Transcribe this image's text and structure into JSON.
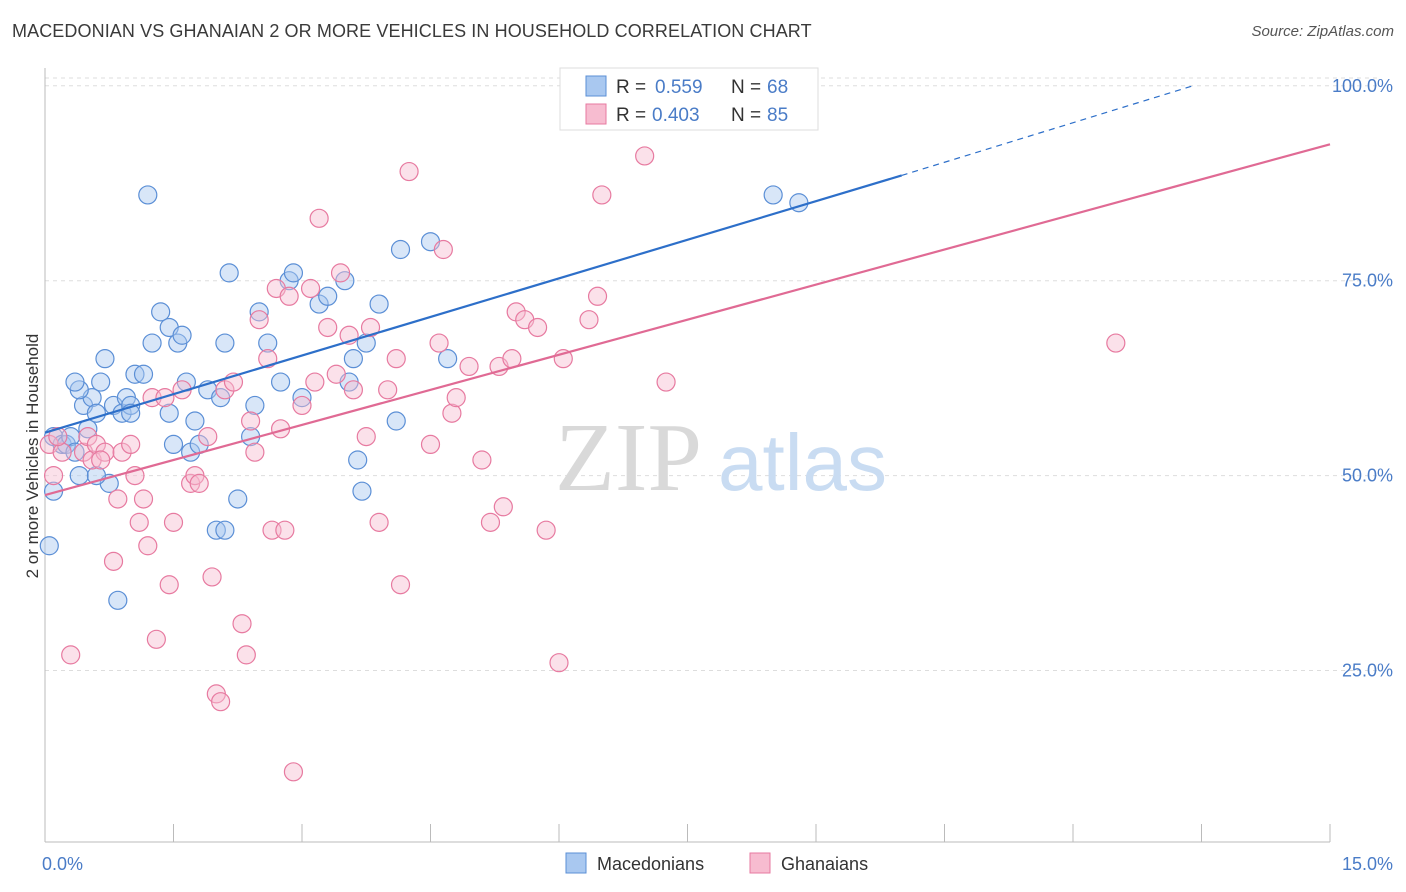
{
  "header": {
    "title": "MACEDONIAN VS GHANAIAN 2 OR MORE VEHICLES IN HOUSEHOLD CORRELATION CHART",
    "source": "Source: ZipAtlas.com"
  },
  "watermark": {
    "zip": "ZIP",
    "atlas": "atlas"
  },
  "legend": {
    "r_label": "R =",
    "n_label": "N =",
    "rows": [
      {
        "r": "0.559",
        "n": "68"
      },
      {
        "r": "0.403",
        "n": "85"
      }
    ]
  },
  "colors": {
    "blue_fill": "#a9c8f0",
    "blue_stroke": "#5b8fd6",
    "blue_line": "#2d6fc9",
    "pink_fill": "#f7bcd0",
    "pink_stroke": "#e77aa0",
    "pink_line": "#e06a94",
    "tick_text": "#4a7cc7",
    "grid": "#dddddd"
  },
  "chart_data": {
    "type": "scatter",
    "title": "MACEDONIAN VS GHANAIAN 2 OR MORE VEHICLES IN HOUSEHOLD CORRELATION CHART",
    "xlabel": "",
    "ylabel": "2 or more Vehicles in Household",
    "xlim": [
      0,
      15
    ],
    "ylim": [
      3,
      101
    ],
    "x_tick_labels": [
      "0.0%",
      "15.0%"
    ],
    "y_ticks": [
      25,
      50,
      75,
      100
    ],
    "y_tick_labels": [
      "25.0%",
      "50.0%",
      "75.0%",
      "100.0%"
    ],
    "grid": true,
    "legend_position": "top-center",
    "series": [
      {
        "name": "Macedonians",
        "color": "blue",
        "r": 0.559,
        "n": 68,
        "trend": {
          "x0": 0,
          "y0": 55.5,
          "x1": 10.0,
          "y1": 88.5,
          "dashed_to_x": 13.4,
          "dashed_to_y": 100
        },
        "points": [
          [
            0.1,
            55
          ],
          [
            0.1,
            48
          ],
          [
            0.05,
            41
          ],
          [
            0.2,
            54
          ],
          [
            0.25,
            54
          ],
          [
            0.3,
            55
          ],
          [
            0.35,
            53
          ],
          [
            0.4,
            50
          ],
          [
            0.45,
            59
          ],
          [
            0.5,
            56
          ],
          [
            0.55,
            60
          ],
          [
            0.4,
            61
          ],
          [
            0.35,
            62
          ],
          [
            0.6,
            58
          ],
          [
            0.65,
            62
          ],
          [
            0.7,
            65
          ],
          [
            0.75,
            49
          ],
          [
            0.8,
            59
          ],
          [
            0.9,
            58
          ],
          [
            0.95,
            60
          ],
          [
            1.0,
            59
          ],
          [
            1.05,
            63
          ],
          [
            1.15,
            63
          ],
          [
            1.25,
            67
          ],
          [
            1.35,
            71
          ],
          [
            1.45,
            69
          ],
          [
            1.55,
            67
          ],
          [
            1.6,
            68
          ],
          [
            1.65,
            62
          ],
          [
            1.5,
            54
          ],
          [
            1.45,
            58
          ],
          [
            1.7,
            53
          ],
          [
            1.75,
            57
          ],
          [
            1.8,
            54
          ],
          [
            1.9,
            61
          ],
          [
            2.0,
            43
          ],
          [
            2.05,
            60
          ],
          [
            2.15,
            76
          ],
          [
            2.1,
            67
          ],
          [
            2.4,
            55
          ],
          [
            2.45,
            59
          ],
          [
            2.5,
            71
          ],
          [
            2.6,
            67
          ],
          [
            2.75,
            62
          ],
          [
            2.85,
            75
          ],
          [
            2.9,
            76
          ],
          [
            3.0,
            60
          ],
          [
            3.2,
            72
          ],
          [
            3.3,
            73
          ],
          [
            3.5,
            75
          ],
          [
            3.55,
            62
          ],
          [
            3.6,
            65
          ],
          [
            3.65,
            52
          ],
          [
            3.7,
            48
          ],
          [
            3.75,
            67
          ],
          [
            3.9,
            72
          ],
          [
            4.1,
            57
          ],
          [
            4.15,
            79
          ],
          [
            4.5,
            80
          ],
          [
            4.7,
            65
          ],
          [
            1.2,
            86
          ],
          [
            2.1,
            43
          ],
          [
            2.25,
            47
          ],
          [
            0.85,
            34
          ],
          [
            0.6,
            50
          ],
          [
            1.0,
            58
          ],
          [
            8.5,
            86
          ],
          [
            8.8,
            85
          ]
        ]
      },
      {
        "name": "Ghanaians",
        "color": "pink",
        "r": 0.403,
        "n": 85,
        "trend": {
          "x0": 0,
          "y0": 47.5,
          "x1": 15.0,
          "y1": 92.5
        },
        "points": [
          [
            0.05,
            54
          ],
          [
            0.1,
            50
          ],
          [
            0.2,
            53
          ],
          [
            0.3,
            27
          ],
          [
            0.45,
            53
          ],
          [
            0.5,
            55
          ],
          [
            0.55,
            52
          ],
          [
            0.6,
            54
          ],
          [
            0.7,
            53
          ],
          [
            0.8,
            39
          ],
          [
            0.85,
            47
          ],
          [
            0.9,
            53
          ],
          [
            1.0,
            54
          ],
          [
            1.05,
            50
          ],
          [
            1.1,
            44
          ],
          [
            1.2,
            41
          ],
          [
            1.25,
            60
          ],
          [
            1.3,
            29
          ],
          [
            1.4,
            60
          ],
          [
            1.45,
            36
          ],
          [
            1.5,
            44
          ],
          [
            1.6,
            61
          ],
          [
            1.7,
            49
          ],
          [
            1.75,
            50
          ],
          [
            1.8,
            49
          ],
          [
            1.9,
            55
          ],
          [
            1.95,
            37
          ],
          [
            2.0,
            22
          ],
          [
            2.05,
            21
          ],
          [
            2.1,
            61
          ],
          [
            2.2,
            62
          ],
          [
            2.3,
            31
          ],
          [
            2.35,
            27
          ],
          [
            2.4,
            57
          ],
          [
            2.45,
            53
          ],
          [
            2.5,
            70
          ],
          [
            2.6,
            65
          ],
          [
            2.65,
            43
          ],
          [
            2.7,
            74
          ],
          [
            2.75,
            56
          ],
          [
            2.85,
            73
          ],
          [
            2.9,
            12
          ],
          [
            3.0,
            59
          ],
          [
            3.1,
            74
          ],
          [
            3.2,
            83
          ],
          [
            3.3,
            69
          ],
          [
            3.4,
            63
          ],
          [
            3.45,
            76
          ],
          [
            3.55,
            68
          ],
          [
            3.6,
            61
          ],
          [
            3.75,
            55
          ],
          [
            3.8,
            69
          ],
          [
            3.9,
            44
          ],
          [
            4.0,
            61
          ],
          [
            4.1,
            65
          ],
          [
            4.15,
            36
          ],
          [
            4.25,
            89
          ],
          [
            4.5,
            54
          ],
          [
            4.6,
            67
          ],
          [
            4.65,
            79
          ],
          [
            4.75,
            58
          ],
          [
            4.8,
            60
          ],
          [
            4.95,
            64
          ],
          [
            5.1,
            52
          ],
          [
            5.2,
            44
          ],
          [
            5.3,
            64
          ],
          [
            5.35,
            46
          ],
          [
            5.45,
            65
          ],
          [
            5.5,
            71
          ],
          [
            5.6,
            70
          ],
          [
            5.75,
            69
          ],
          [
            5.85,
            43
          ],
          [
            6.0,
            26
          ],
          [
            6.05,
            65
          ],
          [
            6.35,
            70
          ],
          [
            6.5,
            86
          ],
          [
            6.45,
            73
          ],
          [
            7.0,
            91
          ],
          [
            7.25,
            62
          ],
          [
            12.5,
            67
          ],
          [
            0.15,
            55
          ],
          [
            0.65,
            52
          ],
          [
            1.15,
            47
          ],
          [
            2.8,
            43
          ],
          [
            3.15,
            62
          ]
        ]
      }
    ]
  }
}
